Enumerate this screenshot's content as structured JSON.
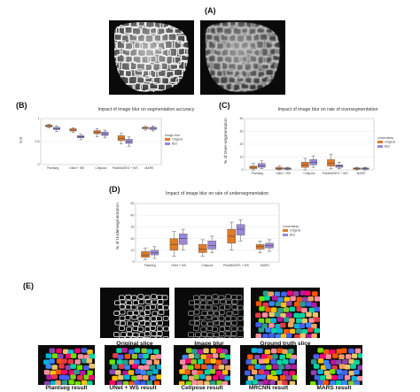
{
  "panels": {
    "A": {
      "label": "(A)"
    },
    "B": {
      "label": "(B)"
    },
    "C": {
      "label": "(C)"
    },
    "D": {
      "label": "(D)"
    },
    "E": {
      "label": "(E)"
    }
  },
  "chart_data": [
    {
      "id": "B",
      "type": "box",
      "title": "Impact of image blur on segmentation accuracy",
      "xlabel": "",
      "ylabel": "VJI",
      "ylim": [
        0.0,
        1.0
      ],
      "categories": [
        "Plantseg",
        "UNet + WS",
        "Cellpose",
        "PlantNASEG + WS",
        "MARS"
      ],
      "legend_title": "Image blur",
      "series": [
        {
          "name": "Original",
          "color": "#e07b2a",
          "boxes": [
            [
              0.8,
              0.82,
              0.84,
              0.86,
              0.88
            ],
            [
              0.7,
              0.73,
              0.75,
              0.78,
              0.8
            ],
            [
              0.6,
              0.67,
              0.7,
              0.74,
              0.78
            ],
            [
              0.45,
              0.52,
              0.57,
              0.63,
              0.68
            ],
            [
              0.75,
              0.78,
              0.8,
              0.81,
              0.83
            ]
          ]
        },
        {
          "name": "Blur",
          "color": "#9a88d8",
          "boxes": [
            [
              0.72,
              0.76,
              0.78,
              0.81,
              0.84
            ],
            [
              0.54,
              0.58,
              0.61,
              0.63,
              0.66
            ],
            [
              0.58,
              0.63,
              0.67,
              0.71,
              0.75
            ],
            [
              0.4,
              0.46,
              0.5,
              0.55,
              0.6
            ],
            [
              0.73,
              0.76,
              0.79,
              0.81,
              0.84
            ]
          ]
        }
      ]
    },
    {
      "id": "C",
      "type": "box",
      "title": "Impact of image blur on rate of oversegmentation",
      "xlabel": "",
      "ylabel": "% of Over-segmentation",
      "ylim": [
        0,
        40
      ],
      "categories": [
        "Plantseg",
        "UNet + WS",
        "Cellpose",
        "PlantNASEG + WS",
        "MARS"
      ],
      "legend_title": "Uncertainty",
      "series": [
        {
          "name": "Original",
          "color": "#e07b2a",
          "boxes": [
            [
              0,
              1,
              2,
              3,
              5
            ],
            [
              0,
              0.5,
              1,
              2,
              3
            ],
            [
              0,
              2,
              4,
              6,
              9
            ],
            [
              1,
              3,
              5,
              8,
              12
            ],
            [
              0,
              0.5,
              1,
              1.5,
              2
            ]
          ]
        },
        {
          "name": "Blur",
          "color": "#9a88d8",
          "boxes": [
            [
              1,
              2,
              3,
              5,
              7
            ],
            [
              0,
              0.5,
              1,
              1.5,
              2
            ],
            [
              2,
              4,
              6,
              8,
              11
            ],
            [
              1,
              2,
              3,
              4,
              6
            ],
            [
              0,
              0.5,
              1,
              1.5,
              2
            ]
          ]
        }
      ]
    },
    {
      "id": "D",
      "type": "box",
      "title": "Impact of image blur on rate of undersegmentation",
      "xlabel": "",
      "ylabel": "% of Undersegmentation",
      "ylim": [
        0,
        50
      ],
      "categories": [
        "Plantseg",
        "UNet + WS",
        "Cellpose",
        "PlantNASEG + WS",
        "MARS"
      ],
      "legend_title": "Uncertainty",
      "series": [
        {
          "name": "Original",
          "color": "#e07b2a",
          "boxes": [
            [
              2,
              4,
              6,
              9,
              12
            ],
            [
              5,
              10,
              15,
              20,
              26
            ],
            [
              5,
              8,
              11,
              15,
              19
            ],
            [
              10,
              16,
              22,
              28,
              34
            ],
            [
              8,
              11,
              13,
              15,
              18
            ]
          ]
        },
        {
          "name": "Blur",
          "color": "#9a88d8",
          "boxes": [
            [
              3,
              6,
              8,
              10,
              13
            ],
            [
              10,
              15,
              20,
              24,
              28
            ],
            [
              8,
              11,
              14,
              18,
              22
            ],
            [
              18,
              23,
              28,
              32,
              36
            ],
            [
              9,
              12,
              14,
              16,
              19
            ]
          ]
        }
      ]
    }
  ],
  "panel_e": {
    "top_captions": [
      "Original slice",
      "Image blur",
      "Ground truth slice"
    ],
    "bottom_captions": [
      "Plantseg result",
      "UNet + WS result",
      "Cellpose result",
      "MRCNN result",
      "MARS result"
    ]
  },
  "seg_palette": [
    "#e63946",
    "#2a9d8f",
    "#e9c46a",
    "#f4a261",
    "#8e44ad",
    "#3a86ff",
    "#06d6a0",
    "#ff006e",
    "#8ac926",
    "#ffbe0b",
    "#fb5607",
    "#00b4d8",
    "#b5179e",
    "#70e000",
    "#ff8fa3",
    "#4361ee"
  ]
}
